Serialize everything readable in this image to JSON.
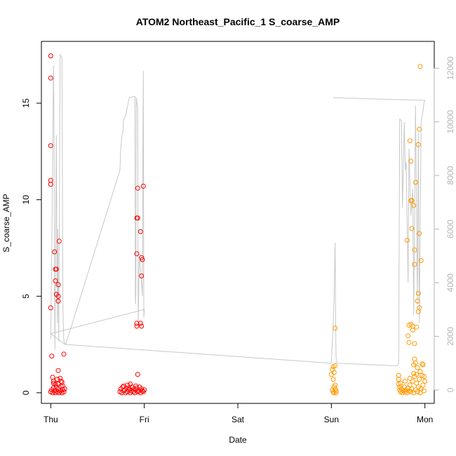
{
  "chart_data": {
    "type": "scatter",
    "title": "ATOM2 Northeast_Pacific_1 S_coarse_AMP",
    "xlabel": "Date",
    "ylabel": "S_coarse_AMP",
    "x_ticks": [
      "Thu",
      "Fri",
      "Sat",
      "Sun",
      "Mon"
    ],
    "x_tick_pos": [
      0,
      1,
      2,
      3,
      4
    ],
    "xlim": [
      -0.1,
      4.1
    ],
    "y_ticks": [
      0,
      5,
      10,
      15
    ],
    "ylim": [
      -0.55,
      18.2
    ],
    "y2_ticks": [
      0,
      2000,
      4000,
      6000,
      8000,
      10000,
      12000
    ],
    "y2lim": [
      -500,
      13000
    ],
    "colors": {
      "red_points": "#ff0000",
      "orange_points": "#ff9900",
      "line": "#c8c8c8",
      "right_axis": "#b5b5b5"
    },
    "series": [
      {
        "color_key": "red_points",
        "points": [
          [
            0.0,
            17.45
          ],
          [
            0.0,
            16.3
          ],
          [
            0.0,
            12.8
          ],
          [
            0.0,
            11.0
          ],
          [
            0.0,
            10.8
          ],
          [
            0.0,
            4.4
          ],
          [
            0.01,
            1.9
          ],
          [
            0.04,
            7.3
          ],
          [
            0.05,
            6.4
          ],
          [
            0.06,
            6.4
          ],
          [
            0.05,
            5.8
          ],
          [
            0.06,
            5.1
          ],
          [
            0.08,
            5.0
          ],
          [
            0.08,
            4.75
          ],
          [
            0.08,
            5.6
          ],
          [
            0.09,
            7.85
          ],
          [
            0.08,
            1.15
          ],
          [
            0.14,
            2.0
          ],
          [
            0.02,
            0.8
          ],
          [
            0.03,
            0.6
          ],
          [
            0.05,
            0.45
          ],
          [
            0.07,
            0.7
          ],
          [
            0.1,
            0.75
          ],
          [
            0.12,
            0.55
          ],
          [
            0.13,
            0.35
          ],
          [
            0.0,
            0.05
          ],
          [
            0.01,
            0.15
          ],
          [
            0.02,
            0.0
          ],
          [
            0.03,
            0.25
          ],
          [
            0.04,
            0.1
          ],
          [
            0.05,
            0.0
          ],
          [
            0.06,
            0.3
          ],
          [
            0.07,
            0.05
          ],
          [
            0.08,
            0.2
          ],
          [
            0.09,
            0.0
          ],
          [
            0.1,
            0.1
          ],
          [
            0.11,
            0.35
          ],
          [
            0.12,
            0.0
          ],
          [
            0.13,
            0.15
          ],
          [
            0.14,
            0.05
          ],
          [
            0.15,
            0.2
          ],
          [
            0.03,
            0.5
          ],
          [
            0.08,
            0.45
          ],
          [
            0.11,
            0.6
          ],
          [
            0.93,
            10.6
          ],
          [
            0.99,
            10.7
          ],
          [
            0.92,
            9.05
          ],
          [
            0.93,
            9.05
          ],
          [
            0.96,
            8.35
          ],
          [
            0.92,
            7.2
          ],
          [
            0.97,
            7.0
          ],
          [
            0.98,
            6.9
          ],
          [
            0.97,
            6.05
          ],
          [
            0.92,
            3.6
          ],
          [
            0.96,
            3.6
          ],
          [
            0.92,
            3.45
          ],
          [
            0.97,
            3.45
          ],
          [
            0.93,
            0.95
          ],
          [
            0.74,
            0.05
          ],
          [
            0.75,
            0.2
          ],
          [
            0.76,
            0.0
          ],
          [
            0.77,
            0.3
          ],
          [
            0.78,
            0.1
          ],
          [
            0.79,
            0.15
          ],
          [
            0.8,
            0.0
          ],
          [
            0.81,
            0.25
          ],
          [
            0.82,
            0.05
          ],
          [
            0.83,
            0.15
          ],
          [
            0.84,
            0.2
          ],
          [
            0.85,
            0.0
          ],
          [
            0.86,
            0.1
          ],
          [
            0.87,
            0.3
          ],
          [
            0.88,
            0.05
          ],
          [
            0.89,
            0.2
          ],
          [
            0.9,
            0.0
          ],
          [
            0.91,
            0.15
          ],
          [
            0.92,
            0.25
          ],
          [
            0.93,
            0.05
          ],
          [
            0.94,
            0.1
          ],
          [
            0.95,
            0.3
          ],
          [
            0.96,
            0.0
          ],
          [
            0.97,
            0.2
          ],
          [
            0.98,
            0.1
          ],
          [
            0.99,
            0.05
          ],
          [
            1.0,
            0.15
          ],
          [
            0.85,
            0.45
          ],
          [
            0.78,
            0.35
          ],
          [
            0.82,
            0.4
          ],
          [
            0.91,
            0.35
          ]
        ]
      },
      {
        "color_key": "orange_points",
        "points": [
          [
            3.04,
            3.35
          ],
          [
            3.02,
            1.35
          ],
          [
            3.04,
            1.4
          ],
          [
            3.01,
            1.2
          ],
          [
            3.03,
            1.05
          ],
          [
            3.0,
            0.95
          ],
          [
            3.02,
            0.7
          ],
          [
            3.04,
            0.4
          ],
          [
            3.01,
            0.15
          ],
          [
            3.02,
            0.05
          ],
          [
            3.03,
            0.0
          ],
          [
            3.04,
            0.2
          ],
          [
            3.05,
            0.1
          ],
          [
            3.03,
            0.3
          ],
          [
            3.05,
            0.0
          ],
          [
            3.95,
            16.9
          ],
          [
            3.94,
            13.65
          ],
          [
            3.84,
            13.05
          ],
          [
            3.93,
            12.85
          ],
          [
            3.85,
            12.0
          ],
          [
            3.9,
            10.9
          ],
          [
            3.85,
            9.95
          ],
          [
            3.86,
            9.95
          ],
          [
            3.88,
            9.7
          ],
          [
            3.96,
            6.85
          ],
          [
            3.86,
            8.5
          ],
          [
            3.94,
            8.25
          ],
          [
            3.81,
            7.9
          ],
          [
            3.89,
            7.4
          ],
          [
            3.89,
            6.65
          ],
          [
            3.93,
            5.15
          ],
          [
            3.92,
            4.75
          ],
          [
            3.94,
            4.4
          ],
          [
            3.93,
            4.2
          ],
          [
            3.83,
            3.5
          ],
          [
            3.85,
            3.55
          ],
          [
            3.87,
            3.45
          ],
          [
            3.87,
            3.25
          ],
          [
            3.91,
            3.4
          ],
          [
            3.82,
            2.95
          ],
          [
            3.83,
            2.6
          ],
          [
            3.89,
            2.55
          ],
          [
            3.89,
            1.75
          ],
          [
            3.88,
            1.45
          ],
          [
            3.9,
            1.55
          ],
          [
            3.92,
            1.3
          ],
          [
            3.97,
            1.5
          ],
          [
            3.98,
            1.45
          ],
          [
            3.72,
            0.9
          ],
          [
            3.72,
            0.7
          ],
          [
            3.72,
            0.45
          ],
          [
            3.73,
            0.3
          ],
          [
            3.73,
            0.15
          ],
          [
            3.74,
            0.05
          ],
          [
            3.75,
            0.2
          ],
          [
            3.76,
            0.0
          ],
          [
            3.77,
            0.1
          ],
          [
            3.78,
            0.3
          ],
          [
            3.79,
            0.05
          ],
          [
            3.8,
            0.15
          ],
          [
            3.81,
            0.0
          ],
          [
            3.82,
            0.25
          ],
          [
            3.83,
            0.1
          ],
          [
            3.84,
            0.4
          ],
          [
            3.85,
            0.05
          ],
          [
            3.86,
            0.2
          ],
          [
            3.87,
            0.6
          ],
          [
            3.88,
            0.0
          ],
          [
            3.89,
            0.85
          ],
          [
            3.9,
            0.15
          ],
          [
            3.91,
            0.5
          ],
          [
            3.92,
            0.05
          ],
          [
            3.93,
            0.3
          ],
          [
            3.94,
            0.7
          ],
          [
            3.95,
            0.0
          ],
          [
            3.96,
            0.2
          ],
          [
            3.97,
            0.9
          ],
          [
            3.98,
            0.4
          ],
          [
            3.99,
            0.1
          ],
          [
            4.0,
            0.6
          ],
          [
            3.74,
            0.5
          ],
          [
            3.79,
            0.6
          ],
          [
            3.84,
            0.75
          ],
          [
            3.88,
            1.0
          ],
          [
            3.91,
            0.95
          ],
          [
            3.95,
            1.1
          ],
          [
            3.99,
            0.85
          ]
        ]
      }
    ],
    "line_series": {
      "color_key": "line",
      "axis": "right",
      "points": [
        [
          0.0,
          1900
        ],
        [
          0.01,
          5000
        ],
        [
          0.02,
          8500
        ],
        [
          0.03,
          12100
        ],
        [
          0.035,
          10000
        ],
        [
          0.04,
          4000
        ],
        [
          0.045,
          1500
        ],
        [
          0.055,
          7000
        ],
        [
          0.06,
          9500
        ],
        [
          0.07,
          2500
        ],
        [
          0.075,
          6000
        ],
        [
          0.085,
          1800
        ],
        [
          0.1,
          12500
        ],
        [
          0.12,
          12400
        ],
        [
          0.13,
          3000
        ],
        [
          0.14,
          1800
        ],
        [
          0.16,
          1700
        ],
        [
          0.74,
          8200
        ],
        [
          0.745,
          8800
        ],
        [
          0.76,
          9500
        ],
        [
          0.77,
          9600
        ],
        [
          0.78,
          10100
        ],
        [
          0.8,
          10200
        ],
        [
          0.81,
          10400
        ],
        [
          0.84,
          10900
        ],
        [
          0.9,
          10950
        ],
        [
          0.905,
          3200
        ],
        [
          0.91,
          3600
        ],
        [
          0.915,
          10900
        ],
        [
          0.93,
          10500
        ],
        [
          0.935,
          2500
        ],
        [
          0.945,
          4500
        ],
        [
          0.95,
          5000
        ],
        [
          0.98,
          3500
        ],
        [
          0.985,
          9000
        ],
        [
          0.99,
          11900
        ],
        [
          0.995,
          2700
        ],
        [
          1.0,
          3000
        ],
        [
          1.0,
          3000
        ],
        [
          0.0,
          2100
        ],
        [
          0.15,
          1700
        ],
        [
          3.0,
          1000
        ],
        [
          3.02,
          2500
        ],
        [
          3.03,
          3500
        ],
        [
          3.04,
          5500
        ],
        [
          3.045,
          3000
        ],
        [
          3.05,
          1200
        ],
        [
          3.06,
          1000
        ],
        [
          3.7,
          900
        ],
        [
          3.72,
          1000
        ],
        [
          3.73,
          10100
        ],
        [
          3.75,
          10050
        ],
        [
          3.76,
          6800
        ],
        [
          3.78,
          10000
        ],
        [
          3.79,
          8200
        ],
        [
          3.8,
          8500
        ],
        [
          3.82,
          4000
        ],
        [
          3.83,
          9000
        ],
        [
          3.85,
          6500
        ],
        [
          3.87,
          7500
        ],
        [
          3.88,
          2800
        ],
        [
          3.9,
          10600
        ],
        [
          3.92,
          3200
        ],
        [
          3.93,
          9600
        ],
        [
          3.94,
          2500
        ],
        [
          3.96,
          10000
        ],
        [
          3.98,
          10400
        ],
        [
          3.99,
          10700
        ],
        [
          4.0,
          10800
        ],
        [
          3.02,
          10900
        ]
      ]
    }
  }
}
